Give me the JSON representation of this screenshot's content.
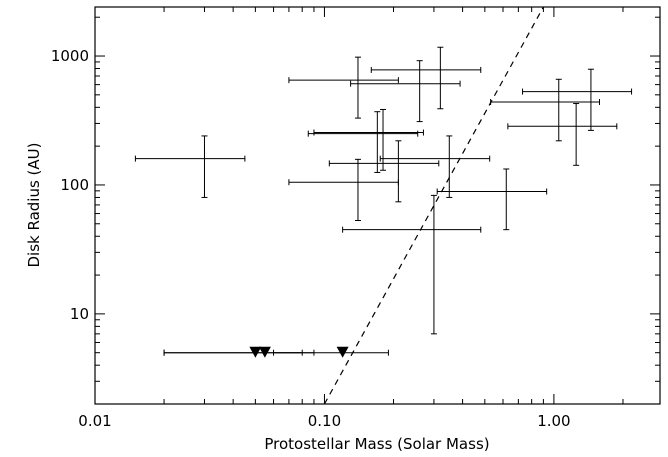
{
  "chart_data": {
    "type": "scatter",
    "title": "",
    "xlabel": "Protostellar Mass (Solar Mass)",
    "ylabel": "Disk Radius (AU)",
    "x_scale": "log",
    "y_scale": "log",
    "xlim": [
      0.01,
      2.9
    ],
    "ylim": [
      2,
      2400
    ],
    "grid": false,
    "legend": "none",
    "x_ticks": [
      {
        "value": 0.01,
        "label": "0.01"
      },
      {
        "value": 0.1,
        "label": "0.10"
      },
      {
        "value": 1,
        "label": "1.00"
      }
    ],
    "y_ticks": [
      {
        "value": 10,
        "label": "10"
      },
      {
        "value": 100,
        "label": "100"
      },
      {
        "value": 1000,
        "label": "1000"
      }
    ],
    "measurements": [
      {
        "x": 0.03,
        "x_lo": 0.015,
        "x_hi": 0.045,
        "y": 160,
        "y_lo": 80,
        "y_hi": 240
      },
      {
        "x": 0.14,
        "x_lo": 0.07,
        "x_hi": 0.21,
        "y": 650,
        "y_lo": 330,
        "y_hi": 980
      },
      {
        "x": 0.26,
        "x_lo": 0.13,
        "x_hi": 0.39,
        "y": 610,
        "y_lo": 310,
        "y_hi": 920
      },
      {
        "x": 0.32,
        "x_lo": 0.16,
        "x_hi": 0.48,
        "y": 780,
        "y_lo": 390,
        "y_hi": 1170
      },
      {
        "x": 0.17,
        "x_lo": 0.085,
        "x_hi": 0.255,
        "y": 250,
        "y_lo": 125,
        "y_hi": 370
      },
      {
        "x": 0.18,
        "x_lo": 0.09,
        "x_hi": 0.27,
        "y": 255,
        "y_lo": 130,
        "y_hi": 385
      },
      {
        "x": 0.21,
        "x_lo": 0.105,
        "x_hi": 0.315,
        "y": 147,
        "y_lo": 74,
        "y_hi": 220
      },
      {
        "x": 0.35,
        "x_lo": 0.175,
        "x_hi": 0.525,
        "y": 160,
        "y_lo": 80,
        "y_hi": 240
      },
      {
        "x": 0.14,
        "x_lo": 0.07,
        "x_hi": 0.21,
        "y": 105,
        "y_lo": 53,
        "y_hi": 158
      },
      {
        "x": 0.62,
        "x_lo": 0.31,
        "x_hi": 0.93,
        "y": 89,
        "y_lo": 45,
        "y_hi": 133
      },
      {
        "x": 0.3,
        "x_lo": 0.12,
        "x_hi": 0.48,
        "y": 45,
        "y_lo": 7,
        "y_hi": 83
      },
      {
        "x": 1.05,
        "x_lo": 0.53,
        "x_hi": 1.58,
        "y": 440,
        "y_lo": 220,
        "y_hi": 660
      },
      {
        "x": 1.45,
        "x_lo": 0.73,
        "x_hi": 2.18,
        "y": 530,
        "y_lo": 265,
        "y_hi": 790
      },
      {
        "x": 1.25,
        "x_lo": 0.63,
        "x_hi": 1.88,
        "y": 285,
        "y_lo": 142,
        "y_hi": 428
      }
    ],
    "upper_limits": [
      {
        "x": 0.05,
        "x_lo": 0.02,
        "x_hi": 0.08,
        "y": 5
      },
      {
        "x": 0.055,
        "x_lo": 0.02,
        "x_hi": 0.09,
        "y": 5
      },
      {
        "x": 0.12,
        "x_lo": 0.06,
        "x_hi": 0.19,
        "y": 5
      }
    ],
    "reference_line": {
      "style": "dashed",
      "points": [
        {
          "x": 0.1,
          "y": 2
        },
        {
          "x": 0.9,
          "y": 2400
        }
      ]
    }
  }
}
